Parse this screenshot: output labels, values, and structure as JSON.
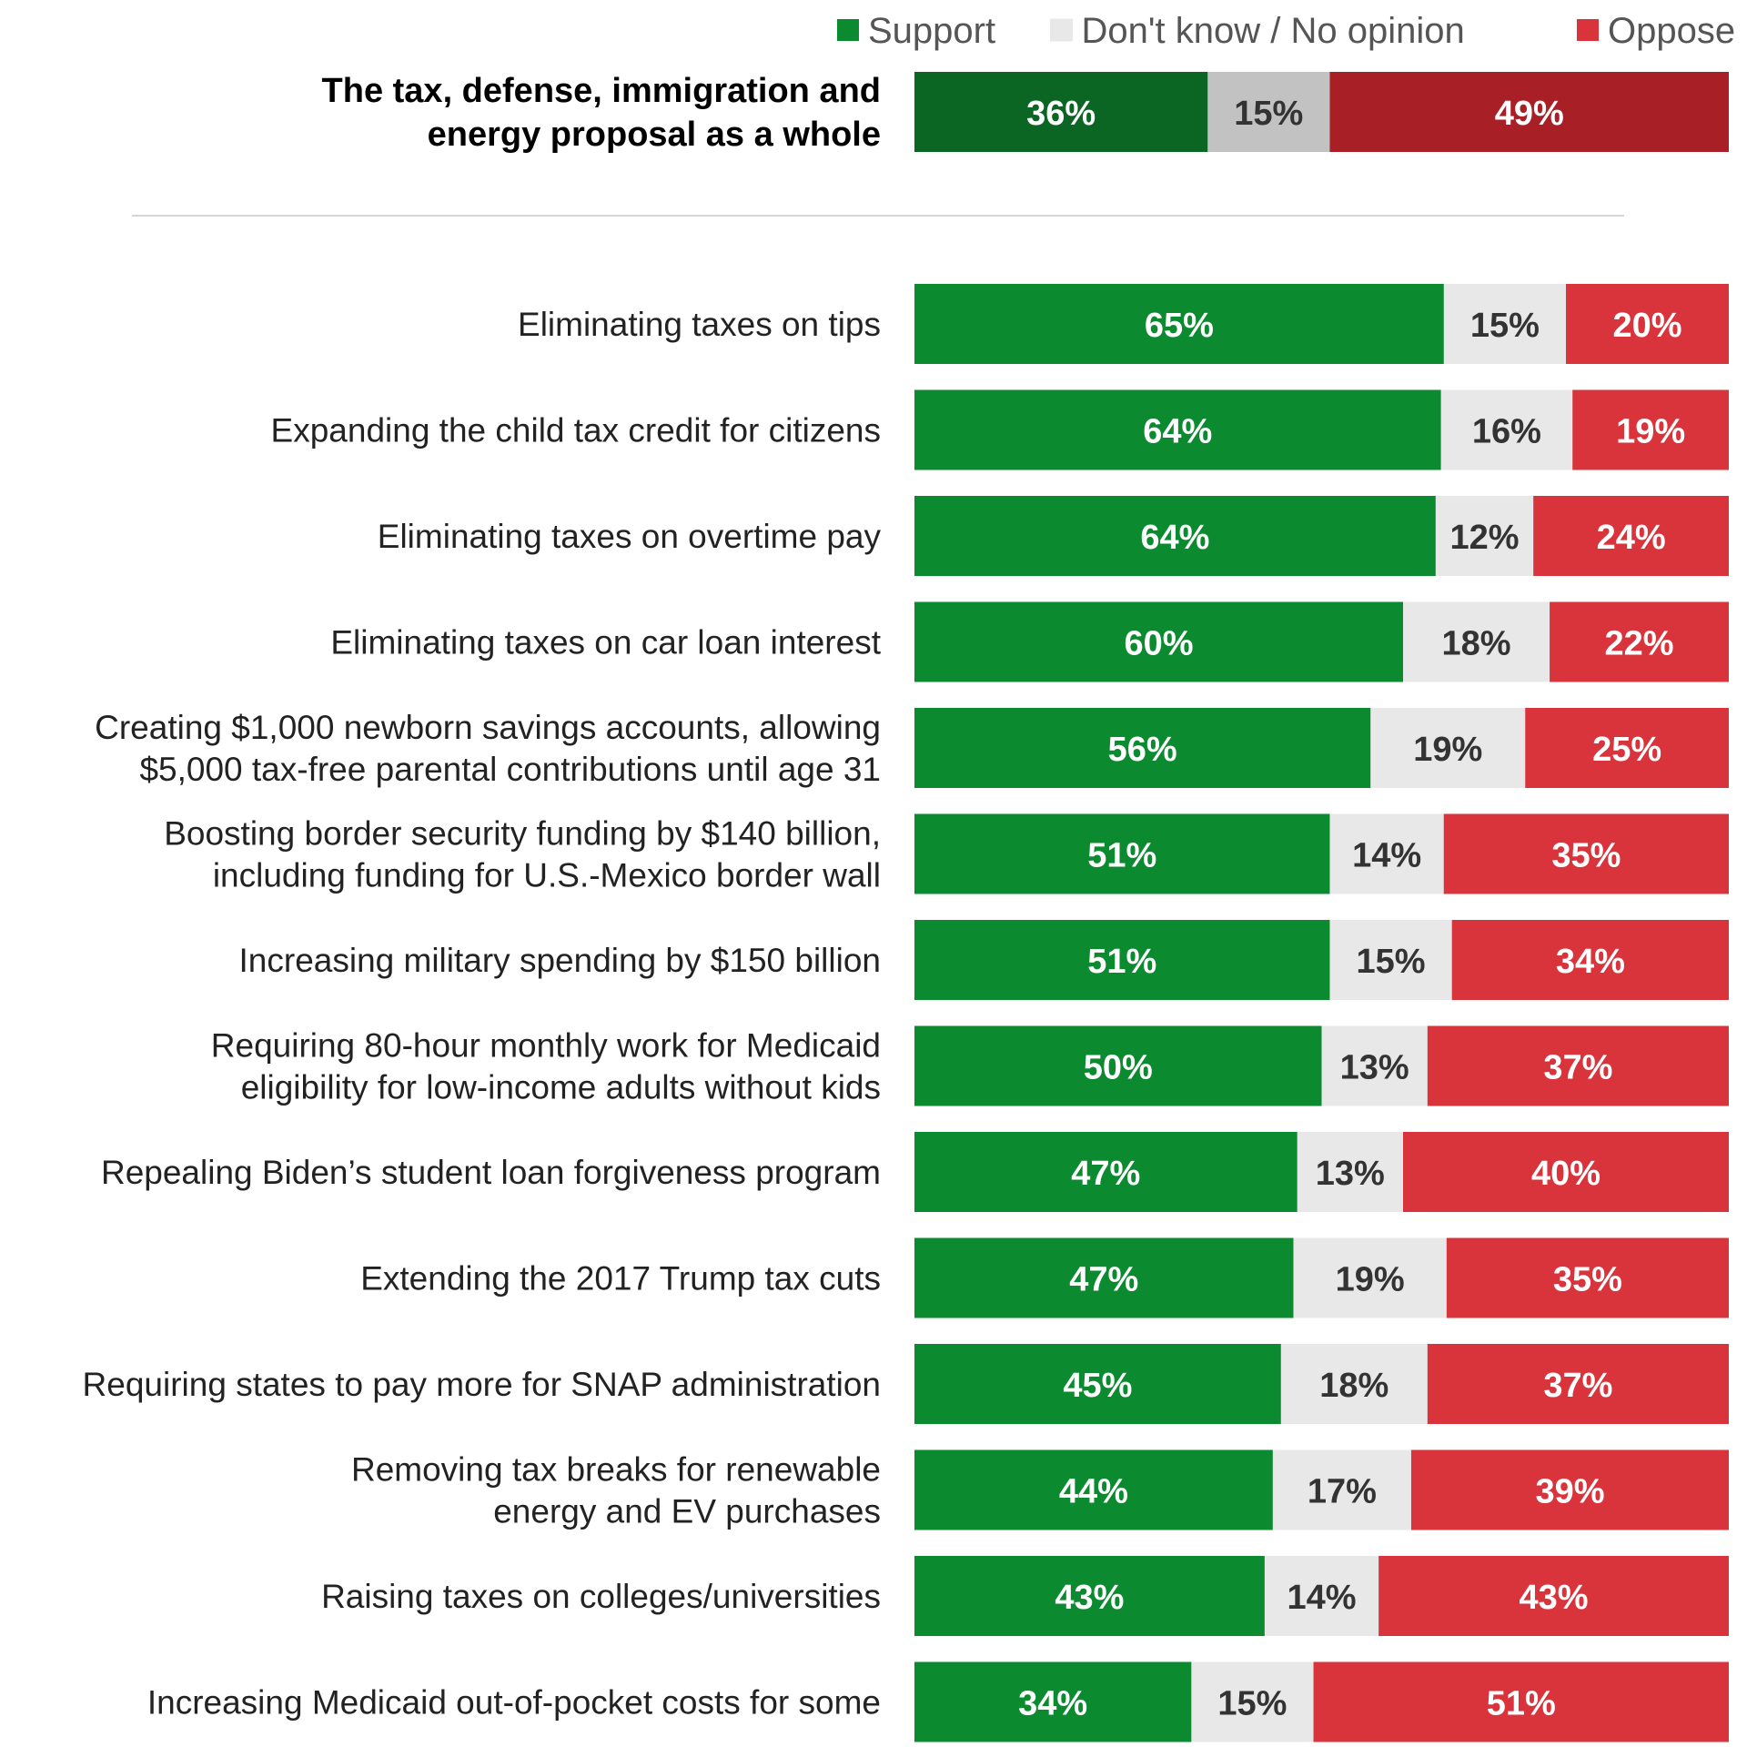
{
  "chart_data": {
    "type": "bar",
    "orientation": "horizontal-stacked",
    "value_suffix": "%",
    "legend_placement": "top-right",
    "legend": [
      {
        "key": "support",
        "label": "Support",
        "color": "#0b8a2f"
      },
      {
        "key": "dont_know",
        "label": "Don't know / No opinion",
        "color": "#e8e8e8"
      },
      {
        "key": "oppose",
        "label": "Oppose",
        "color": "#d9333b"
      }
    ],
    "summary": {
      "label_lines": [
        "The tax, defense, immigration and",
        "energy proposal as a whole"
      ],
      "values": {
        "support": 36,
        "dont_know": 15,
        "oppose": 49
      },
      "colors": {
        "support": "#0b6623",
        "dont_know": "#c2c2c2",
        "oppose": "#a81f26"
      }
    },
    "categories": [
      {
        "label_lines": [
          "Eliminating taxes on tips"
        ],
        "values": {
          "support": 65,
          "dont_know": 15,
          "oppose": 20
        }
      },
      {
        "label_lines": [
          "Expanding the child tax credit for citizens"
        ],
        "values": {
          "support": 64,
          "dont_know": 16,
          "oppose": 19
        }
      },
      {
        "label_lines": [
          "Eliminating taxes on overtime pay"
        ],
        "values": {
          "support": 64,
          "dont_know": 12,
          "oppose": 24
        }
      },
      {
        "label_lines": [
          "Eliminating taxes on car loan interest"
        ],
        "values": {
          "support": 60,
          "dont_know": 18,
          "oppose": 22
        }
      },
      {
        "label_lines": [
          "Creating $1,000 newborn savings accounts, allowing",
          "$5,000 tax-free parental contributions until age 31"
        ],
        "values": {
          "support": 56,
          "dont_know": 19,
          "oppose": 25
        }
      },
      {
        "label_lines": [
          "Boosting border security funding by $140 billion,",
          "including funding for U.S.-Mexico border wall"
        ],
        "values": {
          "support": 51,
          "dont_know": 14,
          "oppose": 35
        }
      },
      {
        "label_lines": [
          "Increasing military spending by $150 billion"
        ],
        "values": {
          "support": 51,
          "dont_know": 15,
          "oppose": 34
        }
      },
      {
        "label_lines": [
          "Requiring 80-hour monthly work for Medicaid",
          "eligibility for low-income adults without kids"
        ],
        "values": {
          "support": 50,
          "dont_know": 13,
          "oppose": 37
        }
      },
      {
        "label_lines": [
          "Repealing Biden’s student loan forgiveness program"
        ],
        "values": {
          "support": 47,
          "dont_know": 13,
          "oppose": 40
        }
      },
      {
        "label_lines": [
          "Extending the 2017 Trump tax cuts"
        ],
        "values": {
          "support": 47,
          "dont_know": 19,
          "oppose": 35
        }
      },
      {
        "label_lines": [
          "Requiring states to pay more for SNAP administration"
        ],
        "values": {
          "support": 45,
          "dont_know": 18,
          "oppose": 37
        }
      },
      {
        "label_lines": [
          "Removing tax breaks for renewable",
          "energy and EV purchases"
        ],
        "values": {
          "support": 44,
          "dont_know": 17,
          "oppose": 39
        }
      },
      {
        "label_lines": [
          "Raising taxes on colleges/universities"
        ],
        "values": {
          "support": 43,
          "dont_know": 14,
          "oppose": 43
        }
      },
      {
        "label_lines": [
          "Increasing Medicaid out-of-pocket costs for some"
        ],
        "values": {
          "support": 34,
          "dont_know": 15,
          "oppose": 51
        }
      }
    ]
  }
}
